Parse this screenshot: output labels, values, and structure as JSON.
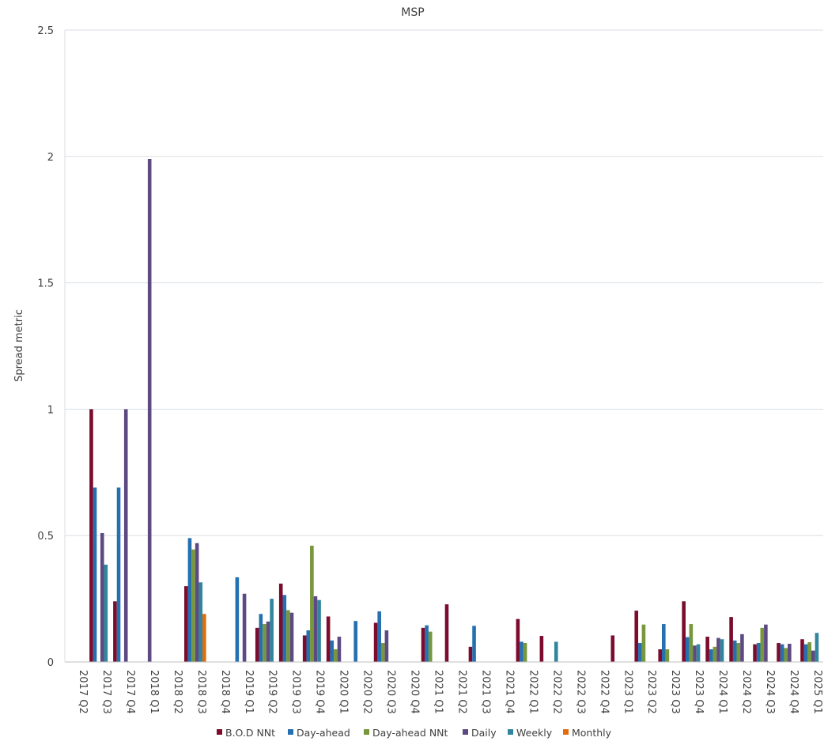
{
  "chart_data": {
    "type": "bar",
    "title": "MSP",
    "xlabel": "",
    "ylabel": "Spread metric",
    "ylim": [
      0,
      2.5
    ],
    "yticks": [
      0,
      0.5,
      1,
      1.5,
      2,
      2.5
    ],
    "ytick_labels": [
      "0",
      "0.5",
      "1",
      "1.5",
      "2",
      "2.5"
    ],
    "grid": true,
    "legend_position": "bottom",
    "categories": [
      "2017 Q2",
      "2017 Q3",
      "2017 Q4",
      "2018 Q1",
      "2018 Q2",
      "2018 Q3",
      "2018 Q4",
      "2019 Q1",
      "2019 Q2",
      "2019 Q3",
      "2019 Q4",
      "2020 Q1",
      "2020 Q2",
      "2020 Q3",
      "2020 Q4",
      "2021 Q1",
      "2021 Q2",
      "2021 Q3",
      "2021 Q4",
      "2022 Q1",
      "2022 Q2",
      "2022 Q3",
      "2022 Q4",
      "2023 Q1",
      "2023 Q2",
      "2023 Q3",
      "2023 Q4",
      "2024 Q1",
      "2024 Q2",
      "2024 Q3",
      "2024 Q4",
      "2025 Q1"
    ],
    "series": [
      {
        "name": "B.O.D NNt",
        "color": "#7b0c2d",
        "values": [
          null,
          1.0,
          0.24,
          null,
          null,
          0.3,
          null,
          null,
          0.135,
          0.31,
          0.105,
          0.18,
          null,
          0.155,
          null,
          0.135,
          0.228,
          0.06,
          null,
          0.17,
          0.103,
          null,
          null,
          0.105,
          0.203,
          0.05,
          0.24,
          0.1,
          0.178,
          0.07,
          0.075,
          0.09
        ]
      },
      {
        "name": "Day-ahead",
        "color": "#2570b0",
        "values": [
          null,
          0.69,
          0.69,
          null,
          null,
          0.49,
          null,
          0.335,
          0.19,
          0.265,
          0.125,
          0.085,
          0.162,
          0.2,
          null,
          0.145,
          null,
          0.143,
          null,
          0.08,
          null,
          null,
          null,
          null,
          0.075,
          0.15,
          0.098,
          0.05,
          0.085,
          0.075,
          0.07,
          0.07
        ]
      },
      {
        "name": "Day-ahead NNt",
        "color": "#77973d",
        "values": [
          null,
          null,
          null,
          null,
          null,
          0.445,
          null,
          null,
          0.15,
          0.205,
          0.46,
          0.05,
          null,
          0.075,
          null,
          0.12,
          null,
          null,
          null,
          0.075,
          null,
          null,
          null,
          null,
          0.148,
          0.05,
          0.15,
          0.06,
          0.075,
          0.135,
          0.055,
          0.078
        ]
      },
      {
        "name": "Daily",
        "color": "#5e4a83",
        "values": [
          null,
          0.51,
          1.0,
          1.99,
          null,
          0.47,
          null,
          0.27,
          0.16,
          0.195,
          0.26,
          0.1,
          null,
          0.125,
          null,
          null,
          null,
          null,
          null,
          null,
          null,
          null,
          null,
          null,
          null,
          null,
          0.065,
          0.095,
          0.11,
          0.148,
          0.072,
          0.045
        ]
      },
      {
        "name": "Weekly",
        "color": "#31859c",
        "values": [
          null,
          0.385,
          null,
          null,
          null,
          0.315,
          null,
          null,
          0.25,
          null,
          0.245,
          null,
          null,
          null,
          null,
          null,
          null,
          null,
          null,
          null,
          0.08,
          null,
          null,
          null,
          null,
          null,
          0.07,
          0.09,
          null,
          null,
          null,
          0.115
        ]
      },
      {
        "name": "Monthly",
        "color": "#e36c0a",
        "values": [
          null,
          null,
          null,
          null,
          null,
          0.19,
          null,
          null,
          null,
          null,
          null,
          null,
          null,
          null,
          null,
          null,
          null,
          null,
          null,
          null,
          null,
          null,
          null,
          null,
          null,
          null,
          null,
          null,
          null,
          null,
          null,
          null
        ]
      }
    ]
  }
}
